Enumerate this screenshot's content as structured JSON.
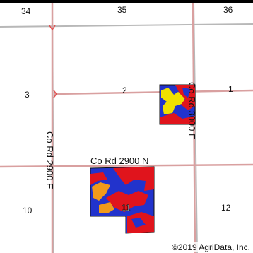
{
  "map": {
    "sections": {
      "s34": "34",
      "s35": "35",
      "s36": "36",
      "s3": "3",
      "s2": "2",
      "s1": "1",
      "s10": "10",
      "s11": "11",
      "s12": "12"
    },
    "roads": {
      "left_vertical": "Co Rd 2900 E",
      "right_vertical": "Co Rd 3000 E",
      "horizontal": "Co Rd 2900 N"
    },
    "copyright": "©2019 AgriData, Inc."
  },
  "colors": {
    "section_line": "#b8b8b8",
    "road": "#d9a0a0",
    "soil_blue": "#2233cc",
    "soil_red": "#e0141c",
    "soil_yellow": "#f0e000",
    "soil_orange": "#f29a1a"
  }
}
